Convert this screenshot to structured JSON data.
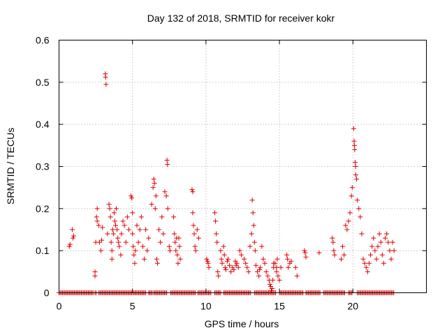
{
  "chart_data": {
    "type": "scatter",
    "title": "Day 132 of 2018, SRMTID for receiver kokr",
    "xlabel": "GPS time / hours",
    "ylabel": "SRMTID / TECUs",
    "xlim": [
      0,
      25
    ],
    "ylim": [
      0,
      0.6
    ],
    "xticks": [
      0,
      5,
      10,
      15,
      20
    ],
    "yticks": [
      0,
      0.1,
      0.2,
      0.3,
      0.4,
      0.5,
      0.6
    ],
    "ytick_labels": [
      "0",
      "0.1",
      "0.2",
      "0.3",
      "0.4",
      "0.5",
      "0.6"
    ],
    "grid": true,
    "marker": "+",
    "color": "#e00000",
    "series": [
      {
        "name": "SRMTID",
        "points": [
          [
            0.7,
            0.11
          ],
          [
            0.75,
            0.115
          ],
          [
            0.9,
            0.15
          ],
          [
            0.95,
            0.13
          ],
          [
            1.0,
            0.135
          ],
          [
            2.45,
            0.05
          ],
          [
            2.45,
            0.04
          ],
          [
            2.5,
            0.12
          ],
          [
            2.55,
            0.18
          ],
          [
            2.6,
            0.2
          ],
          [
            2.6,
            0.17
          ],
          [
            2.7,
            0.16
          ],
          [
            2.75,
            0.12
          ],
          [
            2.85,
            0.1
          ],
          [
            2.9,
            0.125
          ],
          [
            2.95,
            0.155
          ],
          [
            3.15,
            0.52
          ],
          [
            3.17,
            0.512
          ],
          [
            3.2,
            0.495
          ],
          [
            3.3,
            0.14
          ],
          [
            3.4,
            0.21
          ],
          [
            3.45,
            0.2
          ],
          [
            3.5,
            0.18
          ],
          [
            3.55,
            0.12
          ],
          [
            3.6,
            0.1
          ],
          [
            3.6,
            0.08
          ],
          [
            3.65,
            0.15
          ],
          [
            3.7,
            0.14
          ],
          [
            3.75,
            0.19
          ],
          [
            3.8,
            0.17
          ],
          [
            3.85,
            0.16
          ],
          [
            3.9,
            0.2
          ],
          [
            3.95,
            0.15
          ],
          [
            4.0,
            0.13
          ],
          [
            4.05,
            0.12
          ],
          [
            4.1,
            0.11
          ],
          [
            4.2,
            0.09
          ],
          [
            4.25,
            0.14
          ],
          [
            4.35,
            0.17
          ],
          [
            4.45,
            0.16
          ],
          [
            4.55,
            0.12
          ],
          [
            4.65,
            0.18
          ],
          [
            4.75,
            0.15
          ],
          [
            4.9,
            0.23
          ],
          [
            4.95,
            0.225
          ],
          [
            5.0,
            0.19
          ],
          [
            5.0,
            0.14
          ],
          [
            5.05,
            0.11
          ],
          [
            5.1,
            0.09
          ],
          [
            5.15,
            0.07
          ],
          [
            5.2,
            0.1
          ],
          [
            5.3,
            0.16
          ],
          [
            5.4,
            0.12
          ],
          [
            5.5,
            0.15
          ],
          [
            5.6,
            0.18
          ],
          [
            5.7,
            0.11
          ],
          [
            5.8,
            0.08
          ],
          [
            5.9,
            0.15
          ],
          [
            6.0,
            0.1
          ],
          [
            6.1,
            0.13
          ],
          [
            6.3,
            0.21
          ],
          [
            6.4,
            0.25
          ],
          [
            6.45,
            0.27
          ],
          [
            6.5,
            0.26
          ],
          [
            6.55,
            0.2
          ],
          [
            6.6,
            0.23
          ],
          [
            6.65,
            0.08
          ],
          [
            6.7,
            0.07
          ],
          [
            6.8,
            0.15
          ],
          [
            6.9,
            0.12
          ],
          [
            7.0,
            0.18
          ],
          [
            7.1,
            0.14
          ],
          [
            7.2,
            0.24
          ],
          [
            7.3,
            0.23
          ],
          [
            7.35,
            0.315
          ],
          [
            7.38,
            0.305
          ],
          [
            7.4,
            0.2
          ],
          [
            7.5,
            0.11
          ],
          [
            7.55,
            0.1
          ],
          [
            7.8,
            0.18
          ],
          [
            7.85,
            0.14
          ],
          [
            7.9,
            0.12
          ],
          [
            7.95,
            0.1
          ],
          [
            8.0,
            0.13
          ],
          [
            8.05,
            0.09
          ],
          [
            8.1,
            0.07
          ],
          [
            8.15,
            0.13
          ],
          [
            8.2,
            0.11
          ],
          [
            8.25,
            0.08
          ],
          [
            9.05,
            0.245
          ],
          [
            9.1,
            0.24
          ],
          [
            9.1,
            0.19
          ],
          [
            9.15,
            0.16
          ],
          [
            9.2,
            0.14
          ],
          [
            9.25,
            0.11
          ],
          [
            9.3,
            0.1
          ],
          [
            9.4,
            0.15
          ],
          [
            9.5,
            0.13
          ],
          [
            10.05,
            0.08
          ],
          [
            10.1,
            0.075
          ],
          [
            10.15,
            0.07
          ],
          [
            10.2,
            0.06
          ],
          [
            10.6,
            0.19
          ],
          [
            10.65,
            0.17
          ],
          [
            10.7,
            0.14
          ],
          [
            10.75,
            0.12
          ],
          [
            10.8,
            0.05
          ],
          [
            10.85,
            0.04
          ],
          [
            11.0,
            0.1
          ],
          [
            11.05,
            0.08
          ],
          [
            11.1,
            0.07
          ],
          [
            11.2,
            0.11
          ],
          [
            11.25,
            0.09
          ],
          [
            11.3,
            0.06
          ],
          [
            11.35,
            0.055
          ],
          [
            11.5,
            0.08
          ],
          [
            11.6,
            0.065
          ],
          [
            11.7,
            0.05
          ],
          [
            11.8,
            0.06
          ],
          [
            11.9,
            0.055
          ],
          [
            12.0,
            0.075
          ],
          [
            12.1,
            0.07
          ],
          [
            12.2,
            0.06
          ],
          [
            12.3,
            0.1
          ],
          [
            12.4,
            0.09
          ],
          [
            12.6,
            0.08
          ],
          [
            12.7,
            0.07
          ],
          [
            12.8,
            0.06
          ],
          [
            12.9,
            0.05
          ],
          [
            13.0,
            0.11
          ],
          [
            13.1,
            0.14
          ],
          [
            13.15,
            0.22
          ],
          [
            13.2,
            0.19
          ],
          [
            13.25,
            0.16
          ],
          [
            13.3,
            0.12
          ],
          [
            13.35,
            0.1
          ],
          [
            13.4,
            0.065
          ],
          [
            13.5,
            0.05
          ],
          [
            13.6,
            0.04
          ],
          [
            13.7,
            0.06
          ],
          [
            13.8,
            0.11
          ],
          [
            13.9,
            0.08
          ],
          [
            14.0,
            0.07
          ],
          [
            14.1,
            0.05
          ],
          [
            14.2,
            0.04
          ],
          [
            14.3,
            0.03
          ],
          [
            14.35,
            0.02
          ],
          [
            14.4,
            0.015
          ],
          [
            14.45,
            0.005
          ],
          [
            14.5,
            0.01
          ],
          [
            14.55,
            0.03
          ],
          [
            14.6,
            0.06
          ],
          [
            14.7,
            0.07
          ],
          [
            14.8,
            0.05
          ],
          [
            14.85,
            0.08
          ],
          [
            14.9,
            0.04
          ],
          [
            15.0,
            0.03
          ],
          [
            15.1,
            0.06
          ],
          [
            15.5,
            0.09
          ],
          [
            15.55,
            0.08
          ],
          [
            15.6,
            0.06
          ],
          [
            15.7,
            0.07
          ],
          [
            15.8,
            0.075
          ],
          [
            16.1,
            0.06
          ],
          [
            16.2,
            0.04
          ],
          [
            16.7,
            0.1
          ],
          [
            16.75,
            0.095
          ],
          [
            16.8,
            0.085
          ],
          [
            17.7,
            0.095
          ],
          [
            18.6,
            0.13
          ],
          [
            18.65,
            0.12
          ],
          [
            18.7,
            0.1
          ],
          [
            18.75,
            0.09
          ],
          [
            19.2,
            0.08
          ],
          [
            19.3,
            0.11
          ],
          [
            19.4,
            0.09
          ],
          [
            19.5,
            0.16
          ],
          [
            19.6,
            0.15
          ],
          [
            19.7,
            0.17
          ],
          [
            19.8,
            0.19
          ],
          [
            19.9,
            0.23
          ],
          [
            19.95,
            0.25
          ],
          [
            20.05,
            0.39
          ],
          [
            20.08,
            0.36
          ],
          [
            20.1,
            0.35
          ],
          [
            20.12,
            0.34
          ],
          [
            20.15,
            0.31
          ],
          [
            20.18,
            0.3
          ],
          [
            20.2,
            0.28
          ],
          [
            20.25,
            0.27
          ],
          [
            20.3,
            0.22
          ],
          [
            20.4,
            0.2
          ],
          [
            20.5,
            0.18
          ],
          [
            20.6,
            0.14
          ],
          [
            20.7,
            0.08
          ],
          [
            20.8,
            0.07
          ],
          [
            20.9,
            0.06
          ],
          [
            21.0,
            0.05
          ],
          [
            21.1,
            0.07
          ],
          [
            21.2,
            0.09
          ],
          [
            21.3,
            0.11
          ],
          [
            21.4,
            0.13
          ],
          [
            21.5,
            0.1
          ],
          [
            21.6,
            0.08
          ],
          [
            21.7,
            0.11
          ],
          [
            21.8,
            0.14
          ],
          [
            21.9,
            0.12
          ],
          [
            22.0,
            0.09
          ],
          [
            22.1,
            0.07
          ],
          [
            22.2,
            0.13
          ],
          [
            22.3,
            0.14
          ],
          [
            22.4,
            0.12
          ],
          [
            22.5,
            0.1
          ],
          [
            22.6,
            0.08
          ],
          [
            22.7,
            0.12
          ],
          [
            22.8,
            0.1
          ],
          [
            14.6,
            0.07
          ],
          [
            14.8,
            0.06
          ],
          [
            12.05,
            0.065
          ],
          [
            11.45,
            0.075
          ],
          [
            13.65,
            0.055
          ]
        ],
        "zero_baseline_x": [
          [
            0.0,
            2.35
          ],
          [
            2.45,
            2.55
          ],
          [
            2.7,
            5.95
          ],
          [
            6.1,
            6.35
          ],
          [
            6.45,
            7.4
          ],
          [
            7.6,
            9.3
          ],
          [
            9.45,
            10.4
          ],
          [
            10.6,
            11.0
          ],
          [
            11.2,
            13.1
          ],
          [
            13.3,
            14.8
          ],
          [
            15.0,
            16.6
          ],
          [
            16.8,
            17.8
          ],
          [
            18.0,
            19.5
          ],
          [
            19.7,
            20.0
          ],
          [
            20.3,
            22.8
          ]
        ]
      }
    ]
  }
}
